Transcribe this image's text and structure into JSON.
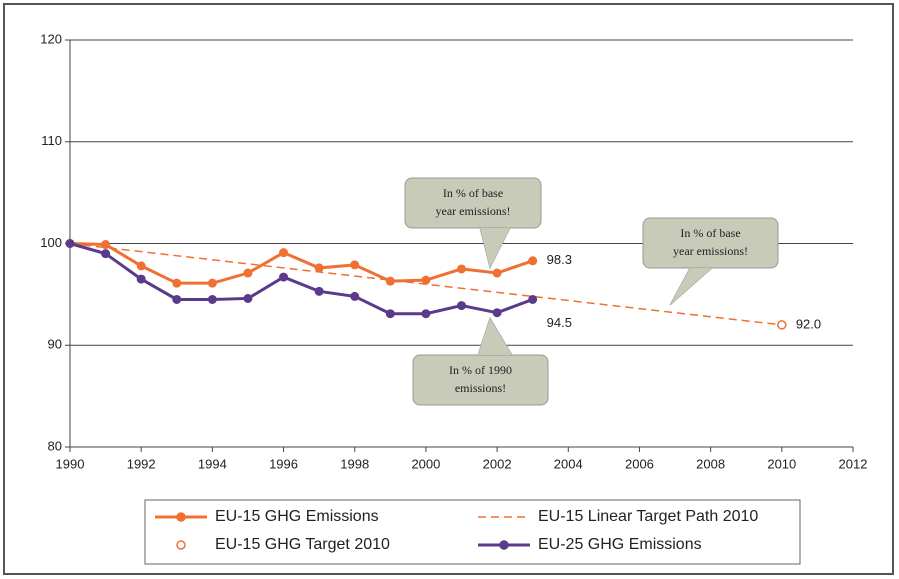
{
  "chart_data": {
    "type": "line",
    "x": [
      1990,
      1991,
      1992,
      1993,
      1994,
      1995,
      1996,
      1997,
      1998,
      1999,
      2000,
      2001,
      2002,
      2003
    ],
    "series": [
      {
        "name": "EU-15 GHG Emissions",
        "color": "#f07033",
        "style": "line-markers",
        "values": [
          100,
          99.9,
          97.8,
          96.1,
          96.1,
          97.1,
          99.1,
          97.6,
          97.9,
          96.3,
          96.4,
          97.5,
          97.1,
          98.3
        ]
      },
      {
        "name": "EU-15 Linear Target Path 2010",
        "color": "#f07033",
        "style": "dashed",
        "x": [
          1990,
          2010
        ],
        "values": [
          100,
          92
        ]
      },
      {
        "name": "EU-15 GHG Target 2010",
        "color": "#f07033",
        "style": "open-marker",
        "x": [
          2010
        ],
        "values": [
          92
        ],
        "value_labels": [
          "92.0"
        ]
      },
      {
        "name": "EU-25 GHG Emissions",
        "color": "#5a3a8a",
        "style": "line-markers",
        "values": [
          100,
          99.0,
          96.5,
          94.5,
          94.5,
          94.6,
          96.7,
          95.3,
          94.8,
          93.1,
          93.1,
          93.9,
          93.2,
          94.5
        ]
      }
    ],
    "xlim": [
      1990,
      2012
    ],
    "xticks": [
      1990,
      1992,
      1994,
      1996,
      1998,
      2000,
      2002,
      2004,
      2006,
      2008,
      2010,
      2012
    ],
    "ylim": [
      80,
      120
    ],
    "yticks": [
      80,
      90,
      100,
      110,
      120
    ],
    "grid": true,
    "annotations": [
      {
        "lines": [
          "In % of base",
          "year emissions!"
        ]
      },
      {
        "lines": [
          "In % of base",
          "year emissions!"
        ]
      },
      {
        "lines": [
          "In % of 1990",
          "emissions!"
        ]
      }
    ]
  }
}
